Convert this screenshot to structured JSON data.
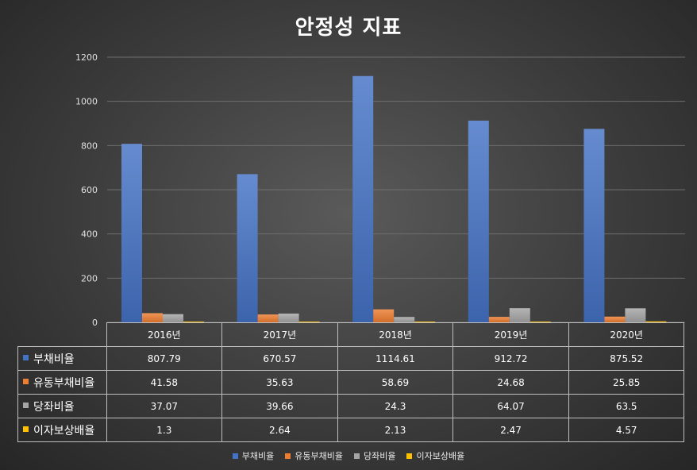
{
  "chart_data": {
    "type": "bar",
    "title": "안정성 지표",
    "categories": [
      "2016년",
      "2017년",
      "2018년",
      "2019년",
      "2020년"
    ],
    "series": [
      {
        "name": "부채비율",
        "color": "#4472c4",
        "values": [
          807.79,
          670.57,
          1114.61,
          912.72,
          875.52
        ],
        "labels": [
          "807.79",
          "670.57",
          "1114.61",
          "912.72",
          "875.52"
        ]
      },
      {
        "name": "유동부채비율",
        "color": "#ed7d31",
        "values": [
          41.58,
          35.63,
          58.69,
          24.68,
          25.85
        ],
        "labels": [
          "41.58",
          "35.63",
          "58.69",
          "24.68",
          "25.85"
        ]
      },
      {
        "name": "당좌비율",
        "color": "#a5a5a5",
        "values": [
          37.07,
          39.66,
          24.3,
          64.07,
          63.5
        ],
        "labels": [
          "37.07",
          "39.66",
          "24.3",
          "64.07",
          "63.5"
        ]
      },
      {
        "name": "이자보상배율",
        "color": "#ffc000",
        "values": [
          1.3,
          2.64,
          2.13,
          2.47,
          4.57
        ],
        "labels": [
          "1.3",
          "2.64",
          "2.13",
          "2.47",
          "4.57"
        ]
      }
    ],
    "ylim": [
      0,
      1200
    ],
    "yticks": [
      "0",
      "200",
      "400",
      "600",
      "800",
      "1000",
      "1200"
    ],
    "grid": true,
    "legend": "bottom",
    "data_table": true
  }
}
